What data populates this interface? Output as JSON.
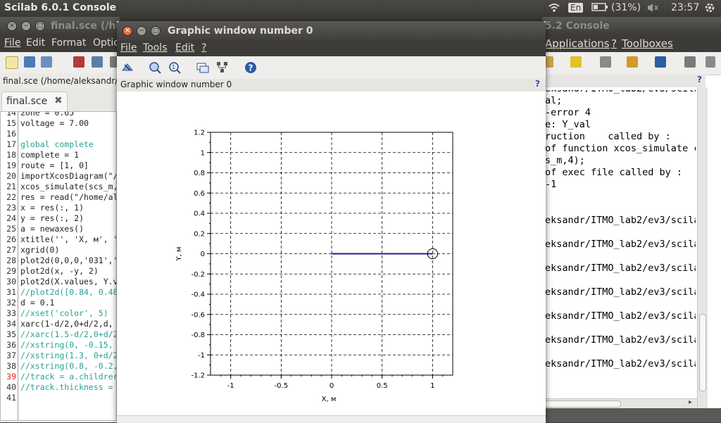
{
  "top_panel": {
    "app_title": "Scilab 6.0.1 Console",
    "language": "En",
    "battery": "(31%)",
    "time": "23:57"
  },
  "editor": {
    "title": "final.sce (/hc",
    "menu": [
      "File",
      "Edit",
      "Format",
      "Optic"
    ],
    "path": "final.sce (/home/aleksandr/I",
    "tab_label": "final.sce",
    "lines": [
      {
        "n": "14",
        "text": "zone = 0.65"
      },
      {
        "n": "15",
        "text": "voltage = 7.00"
      },
      {
        "n": "16",
        "text": ""
      },
      {
        "n": "17",
        "text": "global complete"
      },
      {
        "n": "18",
        "text": "complete = 1"
      },
      {
        "n": "19",
        "text": "route = [1, 0]"
      },
      {
        "n": "20",
        "text": "importXcosDiagram(\"/"
      },
      {
        "n": "21",
        "text": "xcos_simulate(scs_m,"
      },
      {
        "n": "22",
        "text": "res = read(\"/home/al"
      },
      {
        "n": "23",
        "text": "x = res(:, 1)"
      },
      {
        "n": "24",
        "text": "y = res(:, 2)"
      },
      {
        "n": "25",
        "text": "a = newaxes()"
      },
      {
        "n": "26",
        "text": "xtitle('', 'X, м', '"
      },
      {
        "n": "27",
        "text": "xgrid(0)"
      },
      {
        "n": "28",
        "text": "plot2d(0,0,0,'031','"
      },
      {
        "n": "29",
        "text": "plot2d(x, -y, 2)"
      },
      {
        "n": "30",
        "text": "plot2d(X.values, Y.v"
      },
      {
        "n": "31",
        "text": "//plot2d([0.84, 0.48"
      },
      {
        "n": "32",
        "text": "d = 0.1"
      },
      {
        "n": "33",
        "text": "//xset('color', 5)"
      },
      {
        "n": "34",
        "text": "xarc(1-d/2,0+d/2,d,"
      },
      {
        "n": "35",
        "text": "//xarc(1.5-d/2,0+d/2"
      },
      {
        "n": "36",
        "text": "//xstring(0, -0.15,"
      },
      {
        "n": "37",
        "text": "//xstring(1.3, 0+d/2"
      },
      {
        "n": "38",
        "text": "//xstring(0.8, -0.2,"
      },
      {
        "n": "39",
        "text": "//track = a.childrer"
      },
      {
        "n": "40",
        "text": "//track.thickness ="
      },
      {
        "n": "41",
        "text": ""
      }
    ]
  },
  "console": {
    "title": "5.2 Console",
    "menu": [
      "Applications",
      "?",
      "Toolboxes"
    ],
    "lines": [
      "eksandr/ITMO_lab2/ev3/scila",
      "al;",
      "-error 4",
      "e: Y_val",
      "ruction    called by :",
      "of function xcos_simulate ca",
      "s_m,4);",
      "of exec file called by :",
      "-1",
      "",
      "",
      "eksandr/ITMO_lab2/ev3/scila",
      "",
      "eksandr/ITMO_lab2/ev3/scila",
      "",
      "eksandr/ITMO_lab2/ev3/scila",
      "",
      "eksandr/ITMO_lab2/ev3/scila",
      "",
      "eksandr/ITMO_lab2/ev3/scila",
      "",
      "eksandr/ITMO_lab2/ev3/scila",
      "",
      "eksandr/ITMO_lab2/ev3/scila"
    ]
  },
  "graphic_window": {
    "title": "Graphic window number 0",
    "menu": [
      "File",
      "Tools",
      "Edit",
      "?"
    ],
    "header": "Graphic window number 0",
    "header_help": "?"
  },
  "chart_data": {
    "type": "line",
    "title": "",
    "xlabel": "X, м",
    "ylabel": "Y, м",
    "xlim": [
      -1.2,
      1.2
    ],
    "ylim": [
      -1.2,
      1.2
    ],
    "x_ticks": [
      -1,
      -0.5,
      0,
      0.5,
      1
    ],
    "x_tick_labels": [
      "-1",
      "-0.5",
      "0",
      "0.5",
      "1"
    ],
    "y_ticks": [
      1.2,
      1,
      0.8,
      0.6,
      0.4,
      0.2,
      0,
      -0.2,
      -0.4,
      -0.6,
      -0.8,
      -1,
      -1.2
    ],
    "y_tick_labels": [
      "1.2",
      "1",
      "0.8",
      "0.6",
      "0.4",
      "0.2",
      "0",
      "-0.2",
      "-0.4",
      "-0.6",
      "-0.8",
      "-1",
      "-1.2"
    ],
    "grid": "dashed",
    "series": [
      {
        "x": [
          0,
          1
        ],
        "y": [
          0,
          0
        ],
        "color": "#2e1a8c"
      }
    ],
    "circle": {
      "cx": 1,
      "cy": 0,
      "d": 0.1
    },
    "colors": {
      "line": "#2e1a8c",
      "grid": "#000000"
    }
  }
}
